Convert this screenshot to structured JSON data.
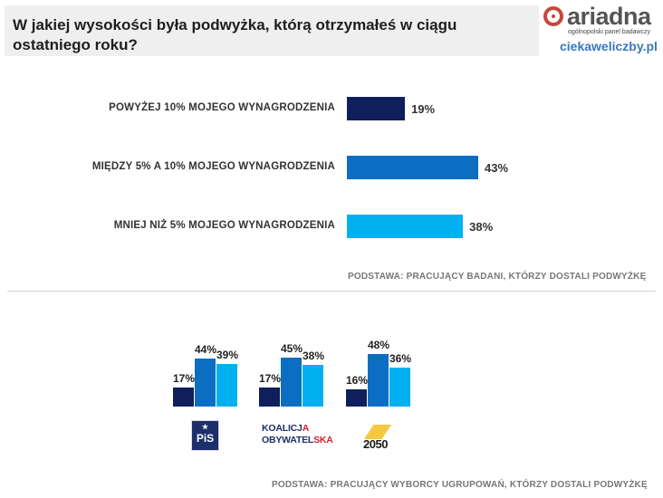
{
  "header": {
    "title": "W jakiej wysokości była podwyżka, którą otrzymałeś w ciągu ostatniego roku?"
  },
  "brand": {
    "name": "ariadna",
    "tagline": "ogólnopolski panel badawczy",
    "site": "ciekaweliczby.pl",
    "color": "#c8453b"
  },
  "colors": [
    "#0f1f5c",
    "#0b6ec2",
    "#00b0f0"
  ],
  "chart_data": [
    {
      "type": "bar",
      "orientation": "horizontal",
      "categories": [
        "POWYŻEJ 10% MOJEGO WYNAGRODZENIA",
        "MIĘDZY 5% A 10% MOJEGO WYNAGRODZENIA",
        "MNIEJ NIŻ 5% MOJEGO WYNAGRODZENIA"
      ],
      "values": [
        19,
        43,
        38
      ],
      "value_labels": [
        "19%",
        "43%",
        "38%"
      ],
      "xlim": [
        0,
        100
      ],
      "grid": false,
      "note": "PODSTAWA: PRACUJĄCY BADANI, KTÓRZY DOSTALI PODWYŻKĘ"
    },
    {
      "type": "bar",
      "orientation": "vertical",
      "groups": [
        {
          "party": "PiS",
          "values": [
            17,
            44,
            39
          ],
          "labels": [
            "17%",
            "44%",
            "39%"
          ]
        },
        {
          "party": "KOALICJA OBYWATELSKA",
          "values": [
            17,
            45,
            38
          ],
          "labels": [
            "17%",
            "45%",
            "38%"
          ]
        },
        {
          "party": "2050",
          "values": [
            16,
            48,
            36
          ],
          "labels": [
            "16%",
            "48%",
            "36%"
          ]
        }
      ],
      "grid": false,
      "note": "PODSTAWA: PRACUJĄCY WYBORCY UGRUPOWAŃ, KTÓRZY DOSTALI PODWYŻKĘ"
    }
  ],
  "logos": {
    "pis": {
      "text": "PiS",
      "star": "★"
    },
    "ko": {
      "line1a": "KOALICJ",
      "line1b": "A",
      "line2a": "OBYWATEL",
      "line2b": "SKA"
    },
    "p2050": {
      "text": "2050"
    }
  }
}
